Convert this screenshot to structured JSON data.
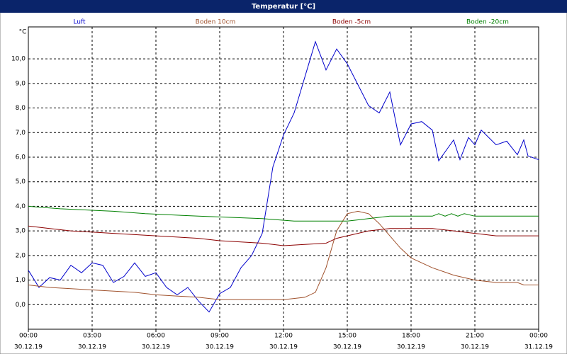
{
  "chart_data": {
    "type": "line",
    "title": "Temperatur [°C]",
    "y_unit": "°C",
    "xlim": [
      0,
      24
    ],
    "ylim": [
      -1.0,
      11.3
    ],
    "grid": true,
    "xticks": [
      {
        "value": 0,
        "label": "00:00"
      },
      {
        "value": 3,
        "label": "03:00"
      },
      {
        "value": 6,
        "label": "06:00"
      },
      {
        "value": 9,
        "label": "09:00"
      },
      {
        "value": 12,
        "label": "12:00"
      },
      {
        "value": 15,
        "label": "15:00"
      },
      {
        "value": 18,
        "label": "18:00"
      },
      {
        "value": 21,
        "label": "21:00"
      },
      {
        "value": 24,
        "label": "00:00"
      }
    ],
    "xtick_dates": [
      "30.12.19",
      "30.12.19",
      "30.12.19",
      "30.12.19",
      "30.12.19",
      "30.12.19",
      "30.12.19",
      "30.12.19",
      "31.12.19"
    ],
    "yticks": [
      {
        "value": 0,
        "label": "0,0"
      },
      {
        "value": 1,
        "label": "1,0"
      },
      {
        "value": 2,
        "label": "2,0"
      },
      {
        "value": 3,
        "label": "3,0"
      },
      {
        "value": 4,
        "label": "4,0"
      },
      {
        "value": 5,
        "label": "5,0"
      },
      {
        "value": 6,
        "label": "6,0"
      },
      {
        "value": 7,
        "label": "7,0"
      },
      {
        "value": 8,
        "label": "8,0"
      },
      {
        "value": 9,
        "label": "9,0"
      },
      {
        "value": 10,
        "label": "10,0"
      }
    ],
    "series": [
      {
        "name": "Luft",
        "color": "#0000cc",
        "x": [
          0,
          0.5,
          1,
          1.5,
          2,
          2.5,
          3,
          3.5,
          4,
          4.5,
          5,
          5.5,
          6,
          6.5,
          7,
          7.5,
          8,
          8.5,
          9,
          9.5,
          10,
          10.5,
          11,
          11.5,
          12,
          12.5,
          13,
          13.5,
          14,
          14.5,
          15,
          15.5,
          16,
          16.5,
          17,
          17.5,
          18,
          18.5,
          19,
          19.3,
          20,
          20.3,
          20.7,
          21,
          21.3,
          22,
          22.5,
          23,
          23.3,
          23.5,
          24
        ],
        "values": [
          1.4,
          0.7,
          1.1,
          1.0,
          1.6,
          1.3,
          1.7,
          1.6,
          0.9,
          1.15,
          1.7,
          1.15,
          1.3,
          0.7,
          0.4,
          0.7,
          0.15,
          -0.3,
          0.45,
          0.7,
          1.5,
          2.0,
          2.9,
          5.6,
          6.9,
          7.8,
          9.25,
          10.7,
          9.55,
          10.4,
          9.8,
          8.95,
          8.1,
          7.8,
          8.65,
          6.5,
          7.35,
          7.45,
          7.1,
          5.85,
          6.7,
          5.9,
          6.8,
          6.5,
          7.1,
          6.5,
          6.65,
          6.1,
          6.7,
          6.05,
          5.9
        ]
      },
      {
        "name": "Boden 10cm",
        "color": "#a0522d",
        "x": [
          0,
          1,
          3,
          5,
          6,
          8,
          9,
          12,
          13,
          13.5,
          14,
          14.5,
          15,
          15.5,
          16,
          16.5,
          17,
          17.5,
          18,
          19,
          20,
          21,
          22,
          23,
          23.3,
          24
        ],
        "values": [
          0.8,
          0.7,
          0.6,
          0.5,
          0.4,
          0.3,
          0.2,
          0.2,
          0.3,
          0.5,
          1.5,
          3.0,
          3.7,
          3.8,
          3.7,
          3.3,
          2.8,
          2.3,
          1.9,
          1.5,
          1.2,
          1.0,
          0.9,
          0.9,
          0.8,
          0.8
        ]
      },
      {
        "name": "Boden -5cm",
        "color": "#8b0000",
        "x": [
          0,
          1,
          2,
          4,
          6,
          8,
          9,
          11,
          12,
          14,
          14.5,
          15,
          15.5,
          16,
          17,
          19,
          20,
          21,
          22,
          24
        ],
        "values": [
          3.2,
          3.1,
          3.0,
          2.9,
          2.8,
          2.7,
          2.6,
          2.5,
          2.4,
          2.5,
          2.7,
          2.8,
          2.9,
          3.0,
          3.1,
          3.1,
          3.0,
          2.9,
          2.8,
          2.8
        ]
      },
      {
        "name": "Boden -20cm",
        "color": "#008000",
        "x": [
          0,
          1.5,
          4,
          5.5,
          8,
          11,
          12.5,
          15,
          16,
          17,
          19,
          19.3,
          19.6,
          19.9,
          20.2,
          20.5,
          21,
          24
        ],
        "values": [
          4.0,
          3.9,
          3.8,
          3.7,
          3.6,
          3.5,
          3.4,
          3.4,
          3.5,
          3.6,
          3.6,
          3.7,
          3.6,
          3.7,
          3.6,
          3.7,
          3.6,
          3.6
        ]
      }
    ]
  }
}
